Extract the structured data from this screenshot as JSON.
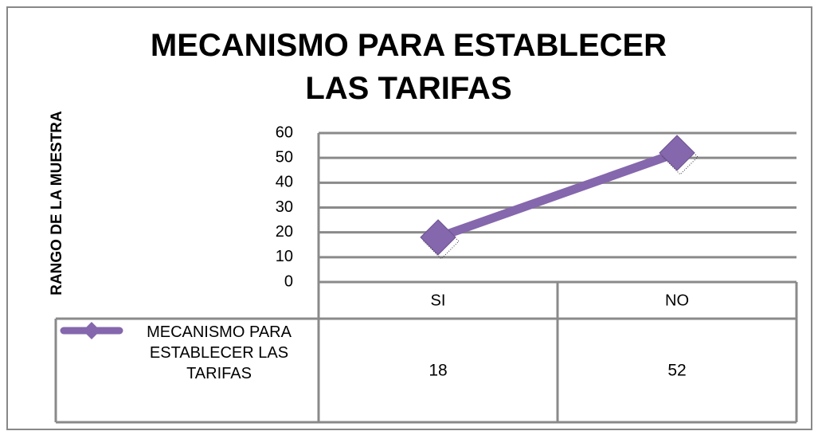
{
  "chart_data": {
    "type": "line",
    "title": "MECANISMO PARA ESTABLECER LAS TARIFAS",
    "y_label": "RANGO DE LA MUESTRA",
    "categories": [
      "SI",
      "NO"
    ],
    "series": [
      {
        "name": "MECANISMO PARA ESTABLECER LAS TARIFAS",
        "color": "#8567ad",
        "values": [
          18,
          52
        ]
      }
    ],
    "ylim": [
      0,
      60
    ],
    "yticks": [
      0,
      10,
      20,
      30,
      40,
      50,
      60
    ],
    "grid": true,
    "data_table": true
  }
}
